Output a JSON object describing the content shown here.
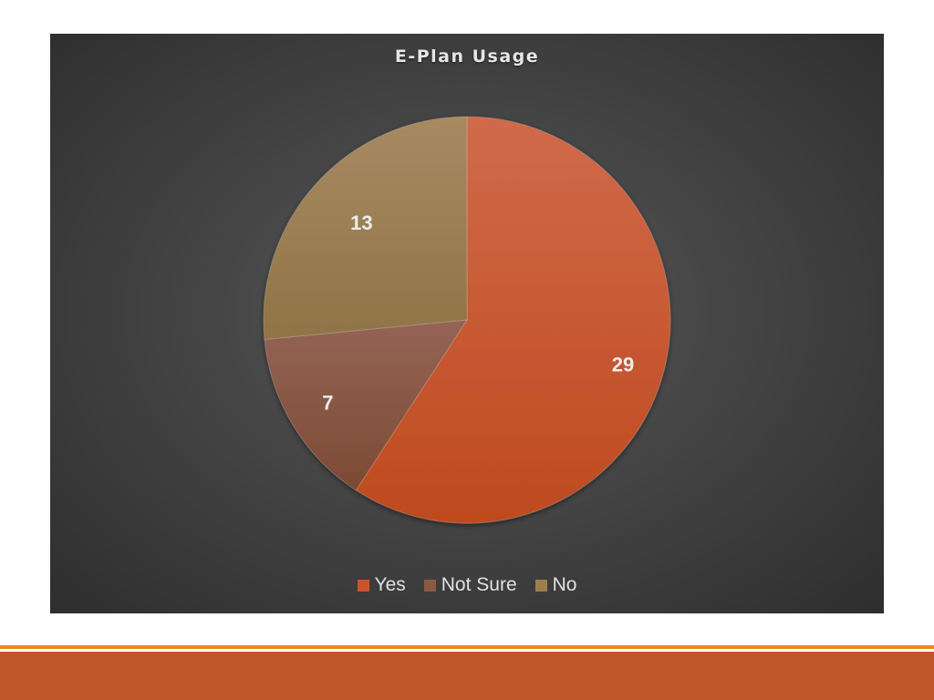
{
  "chart_data": {
    "type": "pie",
    "title": "E-Plan Usage",
    "categories": [
      "Yes",
      "Not Sure",
      "No"
    ],
    "values": [
      29,
      7,
      13
    ],
    "data_labels": [
      "29",
      "7",
      "13"
    ],
    "colors": [
      "#c9542a",
      "#8a5a44",
      "#9c7e4e"
    ],
    "legend_position": "bottom"
  }
}
